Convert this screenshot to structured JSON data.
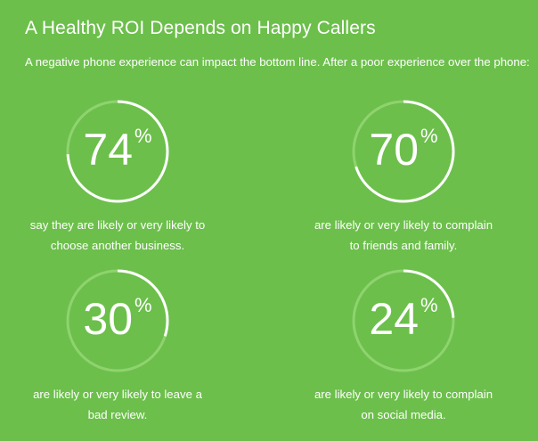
{
  "header": {
    "title": "A Healthy ROI Depends on Happy Callers",
    "subtitle": "A negative phone experience can impact the bottom line. After a poor experience over the phone:"
  },
  "colors": {
    "background": "#6cbf4b",
    "ring_track": "#8fd36f",
    "ring_fill": "#ffffff",
    "text": "#ffffff"
  },
  "stats": [
    {
      "value": "74",
      "unit": "%",
      "percent": 74,
      "line1": "say they are likely or very likely to",
      "line2": "choose another business."
    },
    {
      "value": "70",
      "unit": "%",
      "percent": 70,
      "line1": "are likely or very likely to complain",
      "line2": "to friends and family."
    },
    {
      "value": "30",
      "unit": "%",
      "percent": 30,
      "line1": "are likely or very likely to leave a",
      "line2": "bad review."
    },
    {
      "value": "24",
      "unit": "%",
      "percent": 24,
      "line1": "are likely or very likely to complain",
      "line2": "on social media."
    }
  ]
}
